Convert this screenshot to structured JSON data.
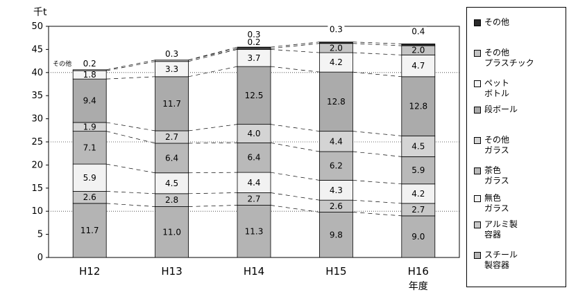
{
  "chart_data": {
    "type": "bar",
    "stacked": true,
    "unit_label": "千t",
    "x_axis_label": "年度",
    "categories": [
      "H12",
      "H13",
      "H14",
      "H15",
      "H16"
    ],
    "ylim": [
      0,
      50
    ],
    "yticks": [
      0,
      5,
      10,
      15,
      20,
      25,
      30,
      35,
      40,
      45,
      50
    ],
    "annotation": "その他",
    "series": [
      {
        "name": "スチール\n製容器",
        "values": [
          11.7,
          11.0,
          11.3,
          9.8,
          9.0
        ],
        "color": "#b4b4b4",
        "labels": [
          "11.7",
          "11.0",
          "11.3",
          "9.8",
          "9.0"
        ]
      },
      {
        "name": "アルミ製\n容器",
        "values": [
          2.6,
          2.8,
          2.7,
          2.6,
          2.7
        ],
        "color": "#c8c8c8",
        "labels": [
          "2.6",
          "2.8",
          "2.7",
          "2.6",
          "2.7"
        ]
      },
      {
        "name": "無色\nガラス",
        "values": [
          5.9,
          4.5,
          4.4,
          4.3,
          4.2
        ],
        "color": "#f2f2f2",
        "labels": [
          "5.9",
          "4.5",
          "4.4",
          "4.3",
          "4.2"
        ]
      },
      {
        "name": "茶色\nガラス",
        "values": [
          7.1,
          6.4,
          6.4,
          6.2,
          5.9
        ],
        "color": "#b9b9b9",
        "labels": [
          "7.1",
          "6.4",
          "6.4",
          "6.2",
          "5.9"
        ]
      },
      {
        "name": "その他\nガラス",
        "values": [
          1.9,
          2.7,
          4.0,
          4.4,
          4.5
        ],
        "color": "#d4d4d4",
        "labels": [
          "1.9",
          "2.7",
          "4.0",
          "4.4",
          "4.5"
        ]
      },
      {
        "name": "段ボール",
        "values": [
          9.4,
          11.7,
          12.5,
          12.8,
          12.8
        ],
        "color": "#ababab",
        "labels": [
          "9.4",
          "11.7",
          "12.5",
          "12.8",
          "12.8"
        ]
      },
      {
        "name": "ペット\nボトル",
        "values": [
          1.8,
          3.3,
          3.7,
          4.2,
          4.7
        ],
        "color": "#f4f4f4",
        "labels": [
          "1.8",
          "3.3",
          "3.7",
          "4.2",
          "4.7"
        ]
      },
      {
        "name": "その他\nプラスチック",
        "values": [
          0.2,
          0.3,
          0.2,
          2.0,
          2.0
        ],
        "color": "#c4c4c4",
        "labels": [
          "0.2",
          "0.3",
          "0.2",
          "2.0",
          "2.0"
        ]
      },
      {
        "name": "その他",
        "values": [
          0.0,
          0.0,
          0.3,
          0.3,
          0.4
        ],
        "color": "#2a2a2a",
        "labels": [
          "",
          "",
          "0.3",
          "0.3",
          "0.4"
        ]
      }
    ]
  }
}
